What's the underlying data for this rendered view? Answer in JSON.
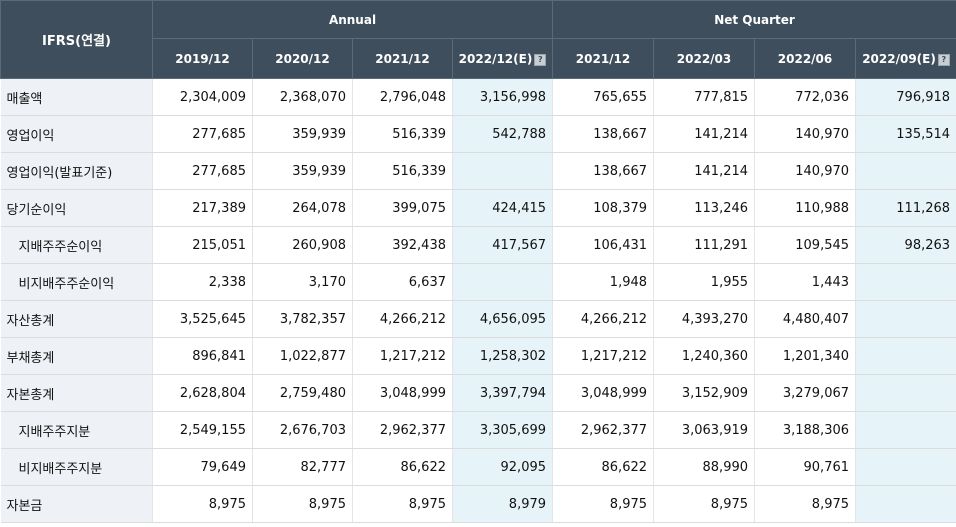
{
  "table": {
    "corner_label": "IFRS(연결)",
    "groups": {
      "annual": "Annual",
      "quarter": "Net Quarter"
    },
    "periods": [
      {
        "label": "2019/12",
        "estimate": false
      },
      {
        "label": "2020/12",
        "estimate": false
      },
      {
        "label": "2021/12",
        "estimate": false
      },
      {
        "label": "2022/12(E)",
        "estimate": true
      },
      {
        "label": "2021/12",
        "estimate": false
      },
      {
        "label": "2022/03",
        "estimate": false
      },
      {
        "label": "2022/06",
        "estimate": false
      },
      {
        "label": "2022/09(E)",
        "estimate": true
      }
    ],
    "estimate_icon": "question-icon",
    "rows": [
      {
        "label": "매출액",
        "sub": false,
        "values": [
          "2,304,009",
          "2,368,070",
          "2,796,048",
          "3,156,998",
          "765,655",
          "777,815",
          "772,036",
          "796,918"
        ]
      },
      {
        "label": "영업이익",
        "sub": false,
        "values": [
          "277,685",
          "359,939",
          "516,339",
          "542,788",
          "138,667",
          "141,214",
          "140,970",
          "135,514"
        ]
      },
      {
        "label": "영업이익(발표기준)",
        "sub": false,
        "values": [
          "277,685",
          "359,939",
          "516,339",
          "",
          "138,667",
          "141,214",
          "140,970",
          ""
        ]
      },
      {
        "label": "당기순이익",
        "sub": false,
        "values": [
          "217,389",
          "264,078",
          "399,075",
          "424,415",
          "108,379",
          "113,246",
          "110,988",
          "111,268"
        ]
      },
      {
        "label": "지배주주순이익",
        "sub": true,
        "values": [
          "215,051",
          "260,908",
          "392,438",
          "417,567",
          "106,431",
          "111,291",
          "109,545",
          "98,263"
        ]
      },
      {
        "label": "비지배주주순이익",
        "sub": true,
        "values": [
          "2,338",
          "3,170",
          "6,637",
          "",
          "1,948",
          "1,955",
          "1,443",
          ""
        ]
      },
      {
        "label": "자산총계",
        "sub": false,
        "values": [
          "3,525,645",
          "3,782,357",
          "4,266,212",
          "4,656,095",
          "4,266,212",
          "4,393,270",
          "4,480,407",
          ""
        ]
      },
      {
        "label": "부채총계",
        "sub": false,
        "values": [
          "896,841",
          "1,022,877",
          "1,217,212",
          "1,258,302",
          "1,217,212",
          "1,240,360",
          "1,201,340",
          ""
        ]
      },
      {
        "label": "자본총계",
        "sub": false,
        "values": [
          "2,628,804",
          "2,759,480",
          "3,048,999",
          "3,397,794",
          "3,048,999",
          "3,152,909",
          "3,279,067",
          ""
        ]
      },
      {
        "label": "지배주주지분",
        "sub": true,
        "values": [
          "2,549,155",
          "2,676,703",
          "2,962,377",
          "3,305,699",
          "2,962,377",
          "3,063,919",
          "3,188,306",
          ""
        ]
      },
      {
        "label": "비지배주주지분",
        "sub": true,
        "values": [
          "79,649",
          "82,777",
          "86,622",
          "92,095",
          "86,622",
          "88,990",
          "90,761",
          ""
        ]
      },
      {
        "label": "자본금",
        "sub": false,
        "values": [
          "8,975",
          "8,975",
          "8,975",
          "8,979",
          "8,975",
          "8,975",
          "8,975",
          ""
        ]
      }
    ]
  }
}
